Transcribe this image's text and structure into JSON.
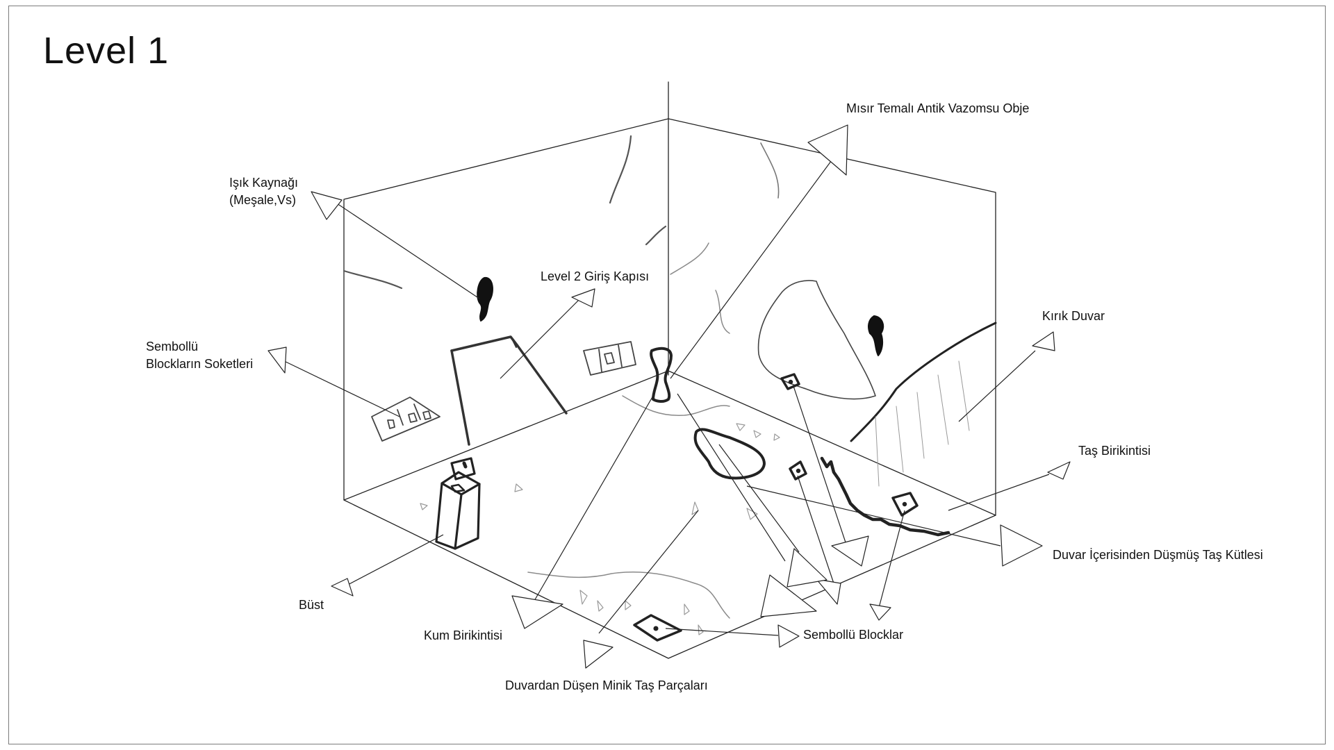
{
  "title": "Level 1",
  "labels": {
    "isik_kaynagi_1": "Işık Kaynağı",
    "isik_kaynagi_2": "(Meşale,Vs)",
    "misir_vazo": "Mısır Temalı Antik Vazomsu Obje",
    "level2_kapi": "Level 2 Giriş Kapısı",
    "soketler_1": "Sembollü",
    "soketler_2": "Blockların Soketleri",
    "kirik_duvar": "Kırık Duvar",
    "tas_birikintisi": "Taş Birikintisi",
    "dusmus_tas": "Duvar İçerisinden Düşmüş Taş Kütlesi",
    "bust": "Büst",
    "kum_birikintisi": "Kum Birikintisi",
    "sembollu_blocklar": "Sembollü Blocklar",
    "minik_tas": "Duvardan Düşen Minik Taş Parçaları"
  }
}
